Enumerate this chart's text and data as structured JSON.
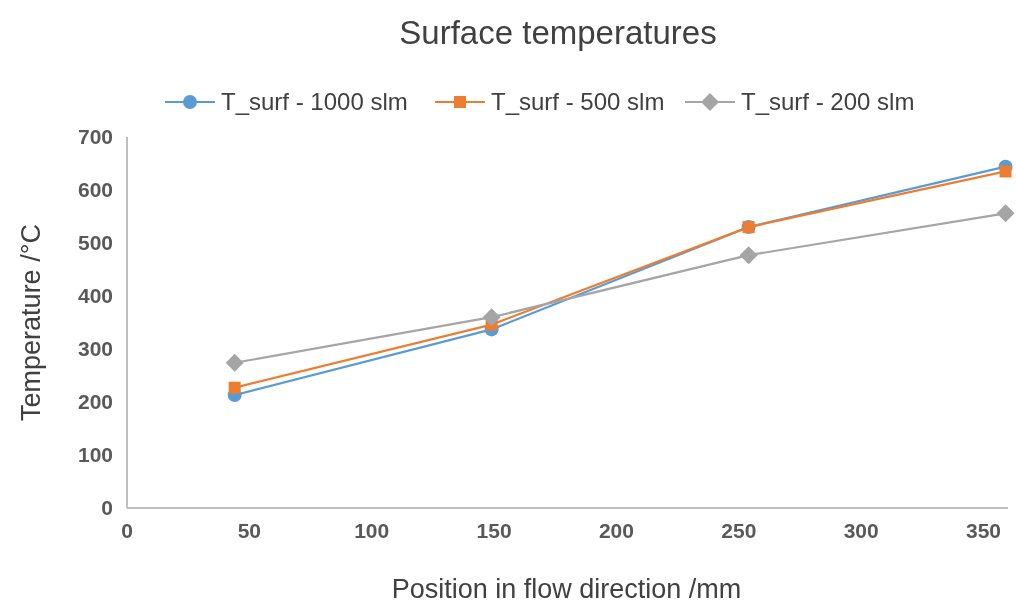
{
  "chart_data": {
    "type": "line",
    "title": "Surface temperatures",
    "xlabel": "Position in flow direction /mm",
    "ylabel": "Temperature /°C",
    "x": [
      44,
      149,
      254,
      359
    ],
    "series": [
      {
        "name": "T_surf - 1000 slm",
        "color": "#5b9bd5",
        "values": [
          213,
          337,
          530,
          644
        ],
        "marker": "circle"
      },
      {
        "name": "T_surf - 500 slm",
        "color": "#ed7d31",
        "values": [
          227,
          346,
          530,
          635
        ],
        "marker": "square"
      },
      {
        "name": "T_surf - 200 slm",
        "color": "#a5a5a5",
        "values": [
          274,
          360,
          477,
          556
        ],
        "marker": "diamond"
      }
    ],
    "xlim": [
      0,
      360
    ],
    "xticks": [
      0,
      50,
      100,
      150,
      200,
      250,
      300,
      350
    ],
    "ylim": [
      0,
      700
    ],
    "yticks": [
      0,
      100,
      200,
      300,
      400,
      500,
      600,
      700
    ],
    "legend": "top",
    "grid": false
  }
}
